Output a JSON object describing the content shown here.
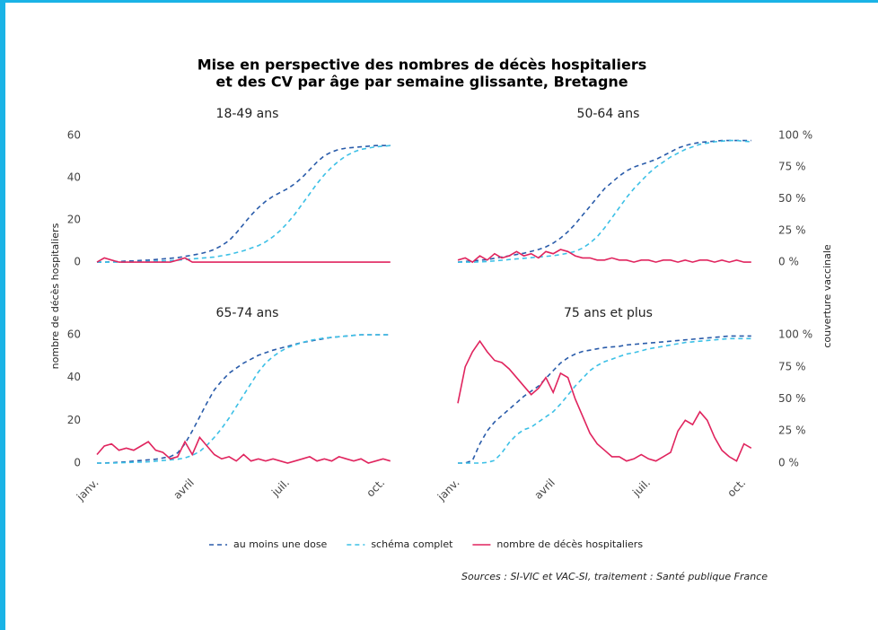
{
  "title": [
    "Mise en perspective des nombres de décès hospitaliers",
    "et des CV par âge par semaine glissante, Bretagne"
  ],
  "ylabel": "nombre de décès hospitaliers",
  "y2label": "couverture vaccinale",
  "source": "Sources : SI-VIC et VAC-SI, traitement : Santé publique France",
  "chart_data": [
    {
      "type": "line",
      "title": "18-49 ans",
      "ylim": [
        -2.5,
        62.5
      ],
      "yticks": [
        0,
        20,
        40,
        60
      ],
      "y2lim": [
        -4.2,
        104.2
      ],
      "series": [
        {
          "name": "au moins une dose",
          "color": "#2a5caa",
          "linestyle": "dashed",
          "axis": "y2",
          "values": [
            0,
            0,
            0.3,
            0.5,
            0.8,
            1,
            1.3,
            1.6,
            2,
            2.5,
            3,
            3.5,
            4.5,
            5.5,
            6.5,
            8,
            10,
            13,
            17,
            23,
            30,
            37,
            43,
            48,
            52,
            55,
            58,
            62,
            67,
            73,
            79,
            84,
            87,
            89,
            90,
            90.5,
            91,
            91.5,
            92,
            92,
            92
          ]
        },
        {
          "name": "schéma complet",
          "color": "#3cc0e6",
          "linestyle": "dashed",
          "axis": "y2",
          "values": [
            0,
            0,
            0,
            0,
            0,
            0.2,
            0.4,
            0.6,
            0.8,
            1,
            1.2,
            1.5,
            2,
            2.5,
            3,
            3.5,
            4,
            5,
            6,
            7.5,
            9,
            11,
            13,
            16,
            20,
            25,
            31,
            38,
            46,
            54,
            62,
            69,
            75,
            80,
            84,
            87,
            89,
            90,
            91,
            91.5,
            92
          ]
        },
        {
          "name": "nombre de décès hospitaliers",
          "color": "#e0245e",
          "linestyle": "solid",
          "values": [
            0,
            2,
            1,
            0,
            0,
            0,
            0,
            0,
            0,
            0,
            0,
            1,
            2,
            0,
            0,
            0,
            0,
            0,
            0,
            0,
            0,
            0,
            0,
            0,
            0,
            0,
            0,
            0,
            0,
            0,
            0,
            0,
            0,
            0,
            0,
            0,
            0,
            0,
            0,
            0,
            0
          ]
        }
      ]
    },
    {
      "type": "line",
      "title": "50-64 ans",
      "ylim": [
        -2.5,
        62.5
      ],
      "y2lim": [
        -4.2,
        104.2
      ],
      "y2ticks": [
        {
          "value": 0,
          "label": "0 %"
        },
        {
          "value": 25,
          "label": "25 %"
        },
        {
          "value": 50,
          "label": "50 %"
        },
        {
          "value": 75,
          "label": "75 %"
        },
        {
          "value": 100,
          "label": "100 %"
        }
      ],
      "series": [
        {
          "color": "#2a5caa",
          "linestyle": "dashed",
          "axis": "y2",
          "values": [
            0,
            0.5,
            1,
            1.5,
            2,
            3,
            4,
            5,
            6,
            7,
            8.5,
            10,
            12,
            15,
            19,
            24,
            30,
            37,
            44,
            51,
            58,
            63,
            68,
            72,
            75,
            77,
            79,
            81,
            84,
            87,
            90,
            92,
            93.5,
            94.5,
            95,
            95.5,
            96,
            96,
            96,
            96,
            96
          ]
        },
        {
          "color": "#3cc0e6",
          "linestyle": "dashed",
          "axis": "y2",
          "values": [
            0,
            0,
            0,
            0.2,
            0.5,
            1,
            1.5,
            2,
            2.5,
            3,
            3.5,
            4,
            4.5,
            5,
            6,
            7,
            8.5,
            11,
            15,
            20,
            27,
            35,
            43,
            51,
            58,
            64,
            70,
            75,
            79,
            83,
            86,
            89,
            91,
            93,
            94,
            95,
            95.5,
            96,
            96,
            95.5,
            95
          ]
        },
        {
          "color": "#e0245e",
          "linestyle": "solid",
          "values": [
            1,
            2,
            0,
            3,
            1,
            4,
            2,
            3,
            5,
            3,
            4,
            2,
            5,
            4,
            6,
            5,
            3,
            2,
            2,
            1,
            1,
            2,
            1,
            1,
            0,
            1,
            1,
            0,
            1,
            1,
            0,
            1,
            0,
            1,
            1,
            0,
            1,
            0,
            1,
            0,
            0
          ]
        }
      ]
    },
    {
      "type": "line",
      "title": "65-74 ans",
      "ylim": [
        -2.5,
        62.5
      ],
      "yticks": [
        0,
        20,
        40,
        60
      ],
      "y2lim": [
        -4.2,
        104.2
      ],
      "categories": [
        "janv.",
        null,
        null,
        null,
        null,
        null,
        null,
        null,
        null,
        null,
        null,
        null,
        null,
        "avril",
        null,
        null,
        null,
        null,
        null,
        null,
        null,
        null,
        null,
        null,
        null,
        null,
        "juil.",
        null,
        null,
        null,
        null,
        null,
        null,
        null,
        null,
        null,
        null,
        null,
        null,
        "oct.",
        null
      ],
      "series": [
        {
          "color": "#2a5caa",
          "linestyle": "dashed",
          "axis": "y2",
          "values": [
            0,
            0,
            0.3,
            0.6,
            1,
            1.5,
            2,
            2.5,
            3,
            4,
            5,
            8,
            15,
            25,
            36,
            47,
            57,
            64,
            70,
            74,
            78,
            81,
            84,
            86,
            88,
            89.5,
            91,
            92.5,
            94,
            95,
            96,
            97,
            98,
            98.5,
            99,
            99.5,
            100,
            100,
            100,
            100,
            100
          ]
        },
        {
          "color": "#3cc0e6",
          "linestyle": "dashed",
          "axis": "y2",
          "values": [
            0,
            0,
            0,
            0.2,
            0.4,
            0.6,
            0.8,
            1,
            1.5,
            2,
            2.5,
            3,
            4,
            6,
            9,
            14,
            20,
            27,
            35,
            44,
            53,
            62,
            71,
            78,
            83,
            87,
            90,
            92,
            94,
            95.5,
            96.5,
            97.5,
            98,
            98.5,
            99,
            99.5,
            100,
            100,
            100,
            100,
            100
          ]
        },
        {
          "color": "#e0245e",
          "linestyle": "solid",
          "values": [
            4,
            8,
            9,
            6,
            7,
            6,
            8,
            10,
            6,
            5,
            2,
            3,
            10,
            4,
            12,
            8,
            4,
            2,
            3,
            1,
            4,
            1,
            2,
            1,
            2,
            1,
            0,
            1,
            2,
            3,
            1,
            2,
            1,
            3,
            2,
            1,
            2,
            0,
            1,
            2,
            1
          ]
        }
      ]
    },
    {
      "type": "line",
      "title": "75 ans et plus",
      "ylim": [
        -2.5,
        62.5
      ],
      "y2lim": [
        -4.2,
        104.2
      ],
      "y2ticks": [
        {
          "value": 0,
          "label": "0 %"
        },
        {
          "value": 25,
          "label": "25 %"
        },
        {
          "value": 50,
          "label": "50 %"
        },
        {
          "value": 75,
          "label": "75 %"
        },
        {
          "value": 100,
          "label": "100 %"
        }
      ],
      "categories": [
        "janv.",
        null,
        null,
        null,
        null,
        null,
        null,
        null,
        null,
        null,
        null,
        null,
        null,
        "avril",
        null,
        null,
        null,
        null,
        null,
        null,
        null,
        null,
        null,
        null,
        null,
        null,
        "juil.",
        null,
        null,
        null,
        null,
        null,
        null,
        null,
        null,
        null,
        null,
        null,
        null,
        "oct.",
        null
      ],
      "series": [
        {
          "color": "#2a5caa",
          "linestyle": "dashed",
          "axis": "y2",
          "values": [
            0,
            0,
            2,
            15,
            25,
            32,
            37,
            42,
            47,
            52,
            56,
            60,
            66,
            72,
            78,
            82,
            85,
            87,
            88,
            89,
            90,
            90.5,
            91,
            92,
            92.5,
            93,
            93.5,
            94,
            94.5,
            95,
            95.5,
            96,
            96.5,
            97,
            97.5,
            98,
            98.5,
            99,
            99,
            99,
            99
          ]
        },
        {
          "color": "#3cc0e6",
          "linestyle": "dashed",
          "axis": "y2",
          "values": [
            0,
            0,
            0,
            0,
            0.5,
            2,
            8,
            16,
            22,
            26,
            28,
            32,
            36,
            40,
            46,
            53,
            60,
            66,
            72,
            76,
            79,
            81,
            83,
            85,
            86,
            87.5,
            89,
            90,
            91,
            92,
            93,
            94,
            94.5,
            95,
            95.5,
            96,
            96.5,
            97,
            97,
            97,
            97
          ]
        },
        {
          "color": "#e0245e",
          "linestyle": "solid",
          "values": [
            28,
            45,
            52,
            57,
            52,
            48,
            47,
            44,
            40,
            36,
            32,
            35,
            40,
            33,
            42,
            40,
            30,
            22,
            14,
            9,
            6,
            3,
            3,
            1,
            2,
            4,
            2,
            1,
            3,
            5,
            15,
            20,
            18,
            24,
            20,
            12,
            6,
            3,
            1,
            9,
            7
          ]
        }
      ]
    }
  ]
}
